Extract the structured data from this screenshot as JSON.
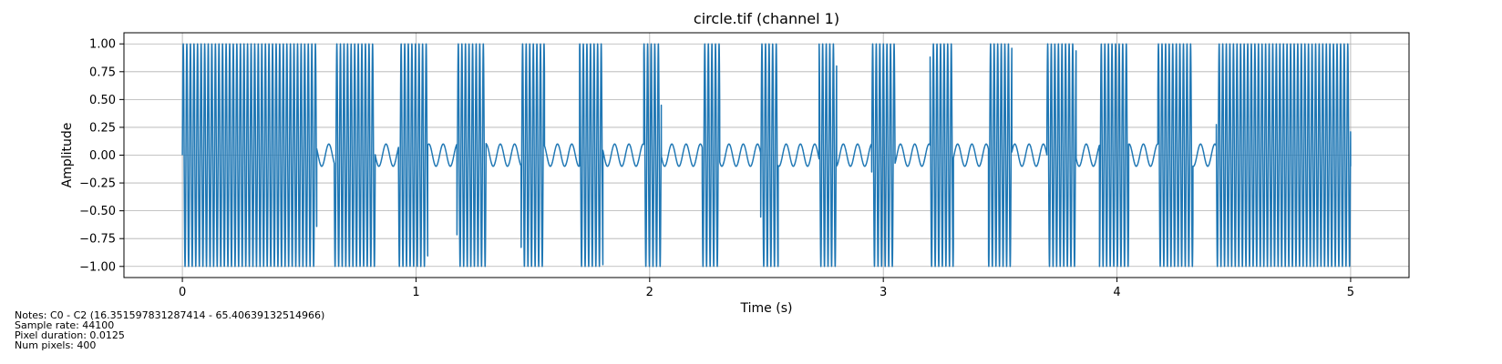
{
  "chart_data": {
    "type": "line",
    "title": "circle.tif (channel 1)",
    "xlabel": "Time (s)",
    "ylabel": "Amplitude",
    "xlim": [
      -0.25,
      5.25
    ],
    "ylim": [
      -1.1,
      1.1
    ],
    "xticks": [
      0,
      1,
      2,
      3,
      4,
      5
    ],
    "xtick_labels": [
      "0",
      "1",
      "2",
      "3",
      "4",
      "5"
    ],
    "yticks": [
      -1.0,
      -0.75,
      -0.5,
      -0.25,
      0.0,
      0.25,
      0.5,
      0.75,
      1.0
    ],
    "ytick_labels": [
      "−1.00",
      "−0.75",
      "−0.50",
      "−0.25",
      "0.00",
      "0.25",
      "0.50",
      "0.75",
      "1.00"
    ],
    "grid": true,
    "color": "#1f77b4",
    "series": [
      {
        "quiet_amplitude": 0.1,
        "quiet_frequency_hz": 16.35,
        "loud_amplitude": 1.0,
        "loud_frequency_hz": 65.41,
        "loud_segments": [
          [
            0.0,
            0.575
          ],
          [
            0.65,
            0.825
          ],
          [
            0.925,
            1.05
          ],
          [
            1.175,
            1.3
          ],
          [
            1.45,
            1.55
          ],
          [
            1.7,
            1.8
          ],
          [
            1.975,
            2.05
          ],
          [
            2.225,
            2.3
          ],
          [
            2.475,
            2.55
          ],
          [
            2.725,
            2.8
          ],
          [
            2.95,
            3.05
          ],
          [
            3.2,
            3.3
          ],
          [
            3.45,
            3.55
          ],
          [
            3.7,
            3.825
          ],
          [
            3.925,
            4.05
          ],
          [
            4.175,
            4.325
          ],
          [
            4.425,
            5.0
          ]
        ],
        "x_start": 0.0,
        "x_end": 5.0
      }
    ]
  },
  "notes": {
    "line1": "Notes: C0 - C2 (16.351597831287414 - 65.40639132514966)",
    "line2": "Sample rate: 44100",
    "line3": "Pixel duration: 0.0125",
    "line4": "Num pixels: 400"
  }
}
